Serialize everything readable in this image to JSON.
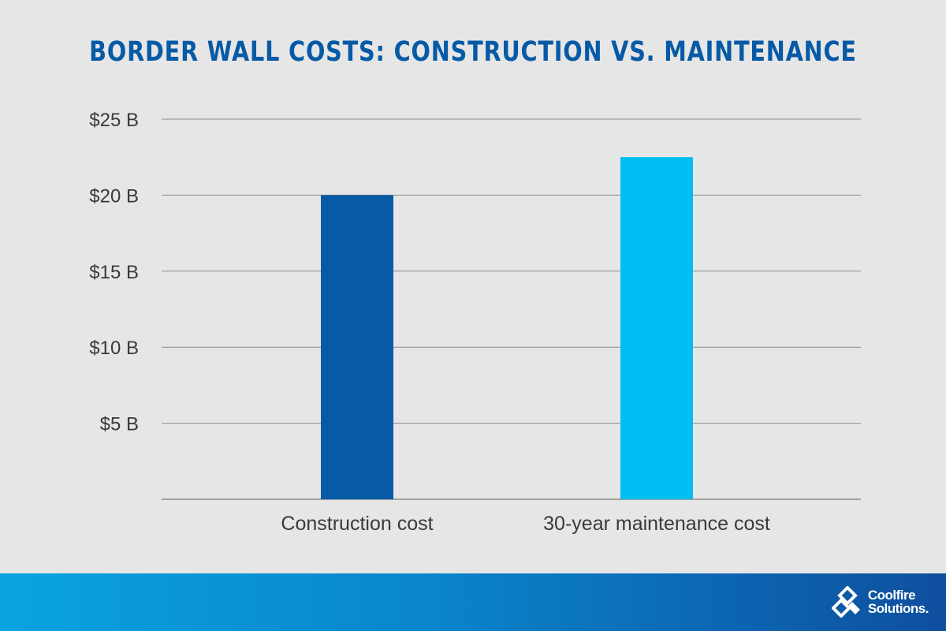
{
  "colors": {
    "background": "#e6e6e6",
    "title": "#065aa6",
    "grid": "#8c8c8c",
    "tick_text": "#3a3a3a",
    "bar_construction": "#065aa6",
    "bar_maintenance": "#00bdf2",
    "footer_start": "#0aa3e0",
    "footer_end": "#0e4f9e"
  },
  "chart_data": {
    "type": "bar",
    "title": "BORDER WALL COSTS: CONSTRUCTION VS. MAINTENANCE",
    "categories": [
      "Construction cost",
      "30-year maintenance cost"
    ],
    "values": [
      20,
      22.5
    ],
    "bar_colors": [
      "#065aa6",
      "#00bdf2"
    ],
    "xlabel": "",
    "ylabel": "",
    "ylim": [
      0,
      25
    ],
    "yticks": [
      5,
      10,
      15,
      20,
      25
    ],
    "ytick_labels": [
      "$5 B",
      "$10 B",
      "$15 B",
      "$20 B",
      "$25 B"
    ],
    "grid": true,
    "legend": "none"
  },
  "footer": {
    "logo_icon": "coolfire-logo-icon",
    "logo_line1": "Coolfire",
    "logo_line2": "Solutions."
  }
}
